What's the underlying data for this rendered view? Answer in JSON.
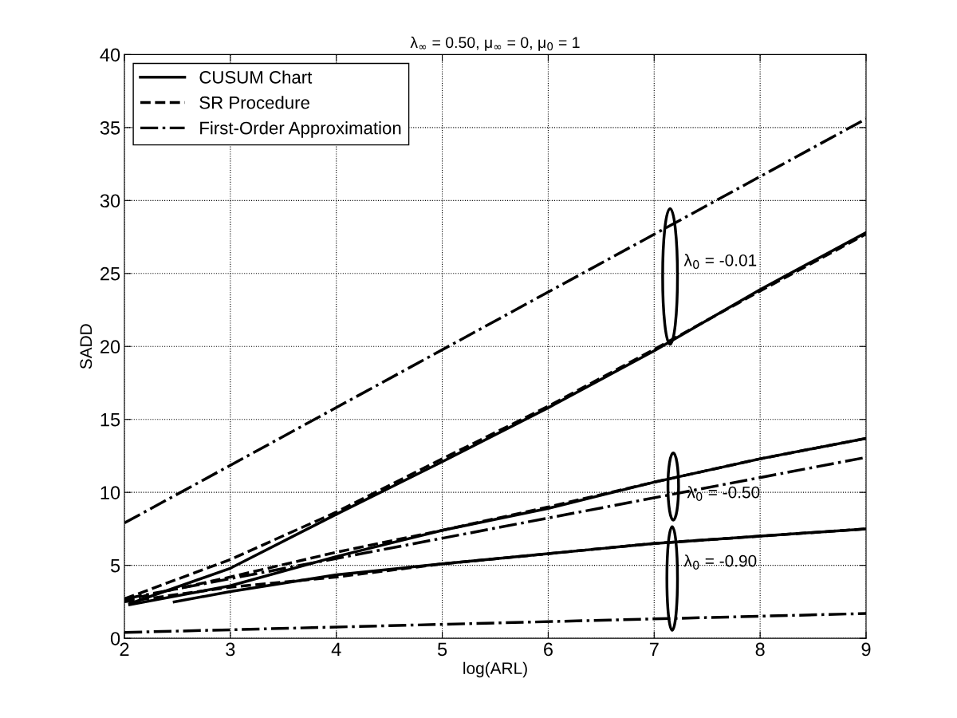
{
  "chart_data": {
    "type": "line",
    "title": "λ$_{∞}$ = 0.50, μ$_{∞}$ = 0, μ$_{0}$ = 1",
    "xlabel": "log(ARL)",
    "ylabel": "SADD",
    "xlim": [
      2,
      9
    ],
    "xticks": [
      2,
      3,
      4,
      5,
      6,
      7,
      8,
      9
    ],
    "ylim": [
      0,
      40
    ],
    "yticks": [
      0,
      5,
      10,
      15,
      20,
      25,
      30,
      35,
      40
    ],
    "grid": true,
    "legend": "top left",
    "series": [
      {
        "name": "CUSUM Chart",
        "color": "#000000",
        "line_style": "solid",
        "x": [
          2.05,
          3,
          4,
          5,
          6,
          7,
          8,
          9
        ],
        "values": [
          2.37,
          4.8,
          8.5,
          12.1,
          15.8,
          19.7,
          23.9,
          27.8
        ]
      },
      {
        "name": "SR Procedure",
        "color": "#000000",
        "line_style": "dashed",
        "x": [
          2,
          3,
          4,
          5,
          6,
          7,
          8,
          9
        ],
        "values": [
          2.7,
          5.4,
          8.65,
          12.3,
          15.9,
          19.8,
          23.8,
          27.7
        ]
      },
      {
        "name": "First-Order Approximation",
        "color": "#000000",
        "line_style": "dashdot",
        "x": [
          2,
          9
        ],
        "values": [
          7.9,
          35.6
        ]
      },
      {
        "color": "#000000",
        "line_style": "solid",
        "x": [
          2.05,
          3,
          4,
          5,
          6,
          7,
          8,
          9
        ],
        "values": [
          2.3,
          3.6,
          5.6,
          7.4,
          8.9,
          10.7,
          12.3,
          13.7
        ]
      },
      {
        "color": "#000000",
        "line_style": "dashed",
        "x": [
          2,
          3,
          4,
          5,
          6,
          7,
          8,
          9
        ],
        "values": [
          2.6,
          4.2,
          5.9,
          7.4,
          9.0,
          10.7,
          12.3,
          13.7
        ]
      },
      {
        "color": "#000000",
        "line_style": "dashdot",
        "x": [
          2,
          9
        ],
        "values": [
          2.7,
          12.4
        ]
      },
      {
        "color": "#000000",
        "line_style": "solid",
        "x": [
          2.47,
          3,
          4,
          5,
          6,
          7,
          8,
          9
        ],
        "values": [
          2.5,
          3.2,
          4.35,
          5.1,
          5.8,
          6.5,
          7.0,
          7.5
        ]
      },
      {
        "color": "#000000",
        "line_style": "dashed",
        "x": [
          2,
          3,
          4,
          5,
          6,
          7,
          8,
          9
        ],
        "values": [
          2.5,
          3.5,
          4.2,
          5.1,
          5.8,
          6.5,
          7.0,
          7.5
        ]
      },
      {
        "color": "#000000",
        "line_style": "dashdot",
        "x": [
          2,
          9
        ],
        "values": [
          0.4,
          1.7
        ]
      }
    ],
    "annotations": [
      "λ$_{0}$ = -0.01",
      "λ$_{0}$ = -0.50",
      "λ$_{0}$ = -0.90"
    ]
  }
}
